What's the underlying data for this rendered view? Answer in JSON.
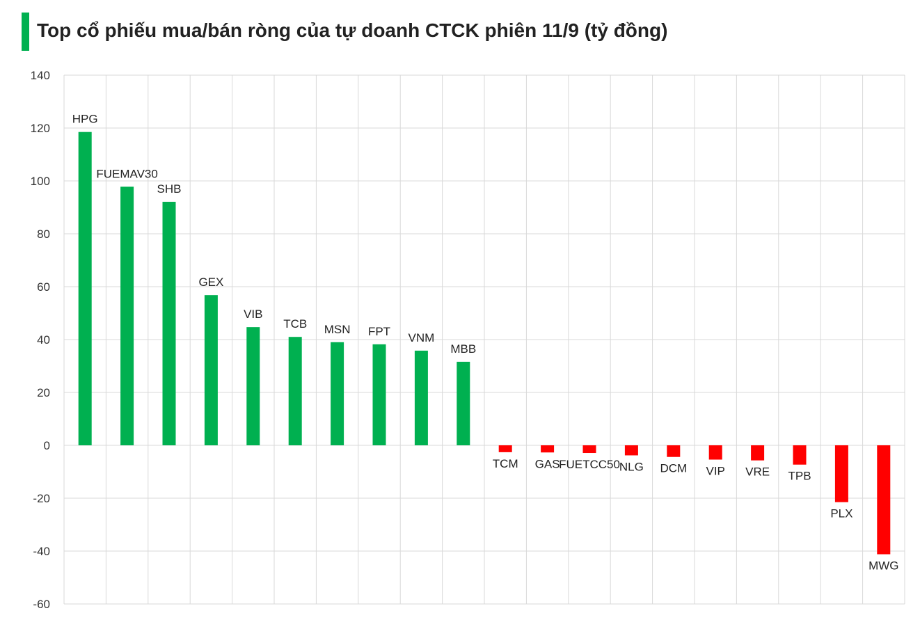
{
  "title": "Top cổ phiếu mua/bán ròng của tự doanh CTCK phiên 11/9 (tỷ đồng)",
  "colors": {
    "positive": "#00b050",
    "negative": "#ff0000",
    "accent": "#00b050",
    "grid": "#d9d9d9"
  },
  "chart_data": {
    "type": "bar",
    "title": "Top cổ phiếu mua/bán ròng của tự doanh CTCK phiên 11/9 (tỷ đồng)",
    "categories": [
      "HPG",
      "FUEMAV30",
      "SHB",
      "GEX",
      "VIB",
      "TCB",
      "MSN",
      "FPT",
      "VNM",
      "MBB",
      "TCM",
      "GAS",
      "FUETCC50",
      "NLG",
      "DCM",
      "VIP",
      "VRE",
      "TPB",
      "PLX",
      "MWG"
    ],
    "values": [
      118.5,
      97.8,
      92.1,
      56.8,
      44.7,
      41.0,
      39.0,
      38.2,
      35.8,
      31.6,
      -2.6,
      -2.7,
      -2.9,
      -3.8,
      -4.4,
      -5.4,
      -5.7,
      -7.3,
      -21.5,
      -41.2
    ],
    "ylim": [
      -60,
      140
    ],
    "yticks": [
      "140",
      "120",
      "100",
      "80",
      "60",
      "40",
      "20",
      "0",
      "-20",
      "-40",
      "-60"
    ],
    "grid": true,
    "legend": "none",
    "xlabel": "",
    "ylabel": ""
  }
}
